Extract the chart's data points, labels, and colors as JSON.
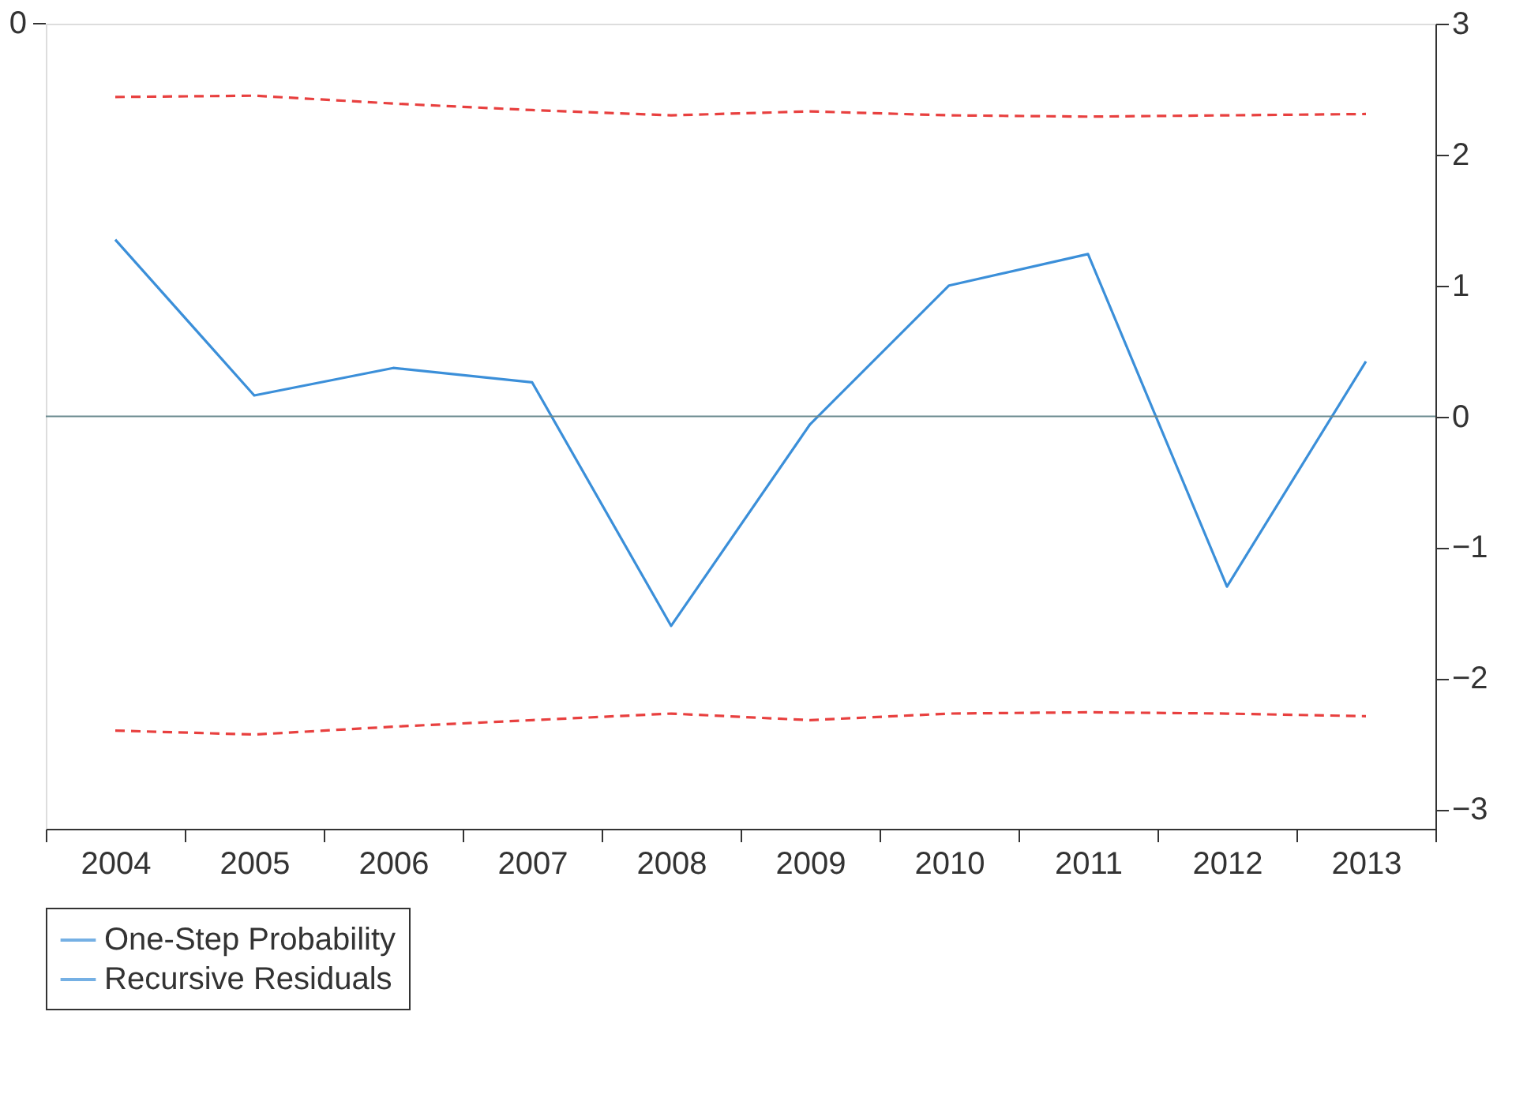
{
  "chart_data": {
    "type": "line",
    "categories": [
      "2004",
      "2005",
      "2006",
      "2007",
      "2008",
      "2009",
      "2010",
      "2011",
      "2012",
      "2013"
    ],
    "series": [
      {
        "name": "One-Step Probability",
        "type": "scatter",
        "color": "#3b8fd9",
        "values": [
          null,
          null,
          null,
          null,
          null,
          null,
          null,
          null,
          null,
          null
        ]
      },
      {
        "name": "Recursive Residuals",
        "color": "#3b8fd9",
        "values": [
          1.35,
          0.16,
          0.37,
          0.26,
          -1.6,
          -0.06,
          1.0,
          1.24,
          -1.3,
          0.42
        ]
      },
      {
        "color": "#e8403f",
        "line_style": "dashed",
        "values": [
          2.44,
          2.45,
          2.39,
          2.34,
          2.3,
          2.33,
          2.3,
          2.29,
          2.3,
          2.31
        ]
      },
      {
        "color": "#e8403f",
        "line_style": "dashed",
        "values": [
          -2.4,
          -2.43,
          -2.37,
          -2.32,
          -2.27,
          -2.32,
          -2.27,
          -2.26,
          -2.27,
          -2.29
        ]
      }
    ],
    "ylim": [
      -3.15,
      3.0
    ],
    "yticks": [
      -3,
      -2,
      -1,
      0,
      1,
      2,
      3
    ],
    "annotations": [
      "0"
    ],
    "ref_lines": [
      {
        "axis": "y",
        "value": 0,
        "color": "#6b8a8f"
      }
    ],
    "grid": false,
    "legend": "bottom"
  }
}
